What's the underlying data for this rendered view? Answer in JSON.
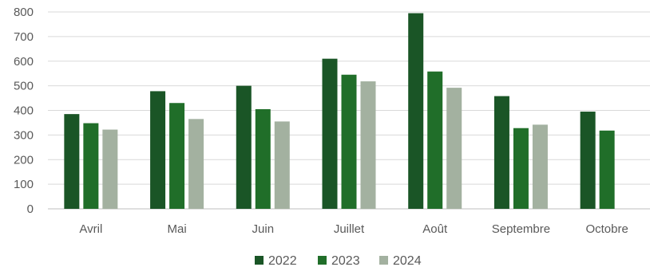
{
  "chart_data": {
    "type": "bar",
    "categories": [
      "Avril",
      "Mai",
      "Juin",
      "Juillet",
      "Août",
      "Septembre",
      "Octobre"
    ],
    "series": [
      {
        "name": "2022",
        "color": "#1a5526",
        "values": [
          385,
          478,
          500,
          610,
          795,
          458,
          395
        ]
      },
      {
        "name": "2023",
        "color": "#206e29",
        "values": [
          348,
          430,
          405,
          545,
          558,
          328,
          318
        ]
      },
      {
        "name": "2024",
        "color": "#a3b1a0",
        "values": [
          322,
          365,
          355,
          518,
          492,
          342,
          null
        ]
      }
    ],
    "yticks": [
      "0",
      "100",
      "200",
      "300",
      "400",
      "500",
      "600",
      "700",
      "800"
    ],
    "ylim": [
      0,
      800
    ],
    "grid": true,
    "legend_position": "bottom",
    "title": "",
    "xlabel": "",
    "ylabel": ""
  }
}
